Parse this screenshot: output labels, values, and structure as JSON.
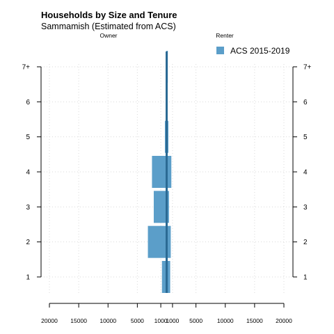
{
  "chart_data": {
    "type": "bar",
    "orientation": "horizontal",
    "layout": "population-pyramid",
    "title": "Households by Size and Tenure",
    "subtitle": "Sammamish (Estimated from ACS)",
    "left_label": "Owner",
    "right_label": "Renter",
    "categories": [
      "1",
      "2",
      "3",
      "4",
      "5",
      "6",
      "7+"
    ],
    "series": [
      {
        "name": "ACS 2015-2019",
        "color": "#5b9ec9",
        "owner": [
          800,
          3200,
          2200,
          2500,
          300,
          100,
          50
        ],
        "renter": [
          600,
          700,
          400,
          800,
          300,
          150,
          200
        ]
      }
    ],
    "x_ticks": [
      -20000,
      -15000,
      -10000,
      -5000,
      -1000,
      1000,
      5000,
      10000,
      15000,
      20000
    ],
    "x_tick_labels": [
      "20000",
      "15000",
      "10000",
      "5000",
      "1000",
      "1000",
      "5000",
      "10000",
      "15000",
      "20000"
    ],
    "xlim": [
      -20000,
      20000
    ],
    "grid": true,
    "legend_position": "top-right",
    "center_line_color": "#2b6a94"
  }
}
